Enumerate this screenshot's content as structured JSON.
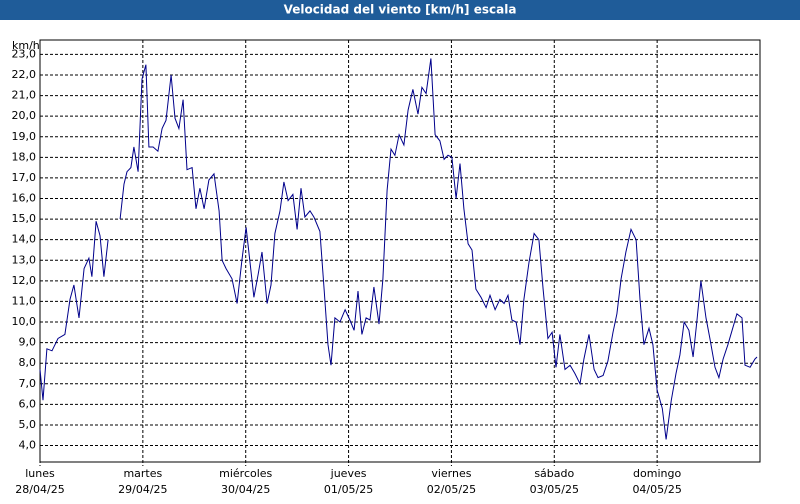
{
  "chart_data": {
    "type": "line",
    "title": "Velocidad del viento [km/h] escala",
    "y_unit": "km/h",
    "xlim": [
      0,
      168
    ],
    "xticks": [
      {
        "value": 0,
        "label": "lunes",
        "date": "28/04/25"
      },
      {
        "value": 24,
        "label": "martes",
        "date": "29/04/25"
      },
      {
        "value": 48,
        "label": "miércoles",
        "date": "30/04/25"
      },
      {
        "value": 72,
        "label": "jueves",
        "date": "01/05/25"
      },
      {
        "value": 96,
        "label": "viernes",
        "date": "02/05/25"
      },
      {
        "value": 120,
        "label": "sábado",
        "date": "03/05/25"
      },
      {
        "value": 144,
        "label": "domingo",
        "date": "04/05/25"
      }
    ],
    "ylim": [
      3.2,
      23.7
    ],
    "yticks": [
      {
        "value": 4,
        "label": "4,0"
      },
      {
        "value": 5,
        "label": "5,0"
      },
      {
        "value": 6,
        "label": "6,0"
      },
      {
        "value": 7,
        "label": "7,0"
      },
      {
        "value": 8,
        "label": "8,0"
      },
      {
        "value": 9,
        "label": "9,0"
      },
      {
        "value": 10,
        "label": "10,0"
      },
      {
        "value": 11,
        "label": "11,0"
      },
      {
        "value": 12,
        "label": "12,0"
      },
      {
        "value": 13,
        "label": "13,0"
      },
      {
        "value": 14,
        "label": "14,0"
      },
      {
        "value": 15,
        "label": "15,0"
      },
      {
        "value": 16,
        "label": "16,0"
      },
      {
        "value": 17,
        "label": "17,0"
      },
      {
        "value": 18,
        "label": "18,0"
      },
      {
        "value": 19,
        "label": "19,0"
      },
      {
        "value": 20,
        "label": "20,0"
      },
      {
        "value": 21,
        "label": "21,0"
      },
      {
        "value": 22,
        "label": "22,0"
      },
      {
        "value": 23,
        "label": "23,0"
      }
    ],
    "grid": true,
    "color": "#00008b",
    "x": [
      0,
      0.7,
      1.6,
      2.8,
      4.2,
      5.8,
      7.0,
      7.9,
      9.1,
      10.3,
      11.4,
      12.1,
      13.1,
      14.0,
      14.9,
      15.9,
      17.0,
      18.7,
      19.6,
      20.3,
      21.2,
      21.9,
      22.9,
      23.8,
      24.7,
      25.4,
      26.4,
      27.5,
      28.5,
      29.4,
      30.6,
      31.5,
      32.4,
      33.4,
      34.3,
      35.5,
      36.4,
      37.3,
      38.3,
      39.4,
      40.6,
      41.8,
      42.5,
      43.4,
      44.8,
      46.0,
      47.1,
      48.1,
      49.0,
      49.9,
      50.9,
      51.8,
      53.0,
      53.9,
      54.8,
      56.0,
      56.9,
      57.9,
      59.0,
      60.0,
      60.9,
      61.8,
      63.0,
      63.9,
      65.3,
      66.3,
      67.2,
      67.9,
      68.8,
      70.0,
      71.2,
      72.3,
      73.3,
      74.2,
      75.1,
      76.1,
      77.0,
      77.9,
      79.1,
      80.0,
      81.0,
      81.9,
      82.8,
      83.8,
      84.9,
      85.9,
      87.0,
      88.2,
      89.1,
      90.1,
      91.2,
      92.2,
      93.3,
      94.3,
      95.2,
      96.1,
      97.1,
      98.0,
      98.9,
      99.9,
      100.8,
      101.7,
      102.9,
      104.1,
      105.0,
      106.2,
      107.3,
      108.3,
      109.2,
      110.1,
      111.1,
      112.0,
      112.9,
      114.1,
      115.3,
      116.4,
      117.4,
      118.5,
      119.5,
      120.4,
      121.3,
      122.5,
      123.7,
      124.8,
      126.0,
      126.9,
      128.1,
      129.3,
      130.2,
      131.4,
      132.5,
      133.7,
      134.6,
      135.6,
      136.7,
      137.9,
      139.1,
      140.0,
      140.9,
      142.1,
      143.0,
      144.0,
      145.2,
      146.1,
      147.3,
      148.4,
      149.3,
      150.3,
      151.4,
      152.4,
      153.3,
      154.2,
      155.4,
      156.3,
      157.5,
      158.4,
      159.4,
      160.5,
      161.5,
      162.6,
      163.8,
      164.5,
      165.7,
      166.8,
      167.3
    ],
    "values": [
      7.7,
      6.2,
      8.7,
      8.6,
      9.2,
      9.4,
      11.1,
      11.8,
      10.2,
      12.6,
      13.1,
      12.2,
      14.9,
      14.2,
      12.2,
      14.0,
      null,
      15.0,
      16.7,
      17.3,
      17.5,
      18.5,
      17.3,
      21.8,
      22.5,
      18.5,
      18.5,
      18.3,
      19.4,
      19.8,
      22.0,
      19.9,
      19.4,
      20.8,
      17.4,
      17.5,
      15.5,
      16.5,
      15.5,
      16.9,
      17.2,
      15.4,
      13.0,
      12.6,
      12.1,
      10.9,
      13.0,
      14.6,
      12.9,
      11.2,
      12.3,
      13.4,
      10.9,
      11.8,
      14.3,
      15.4,
      16.8,
      15.9,
      16.2,
      14.5,
      16.5,
      15.1,
      15.4,
      15.1,
      14.4,
      11.6,
      8.9,
      7.9,
      10.2,
      10.0,
      10.6,
      10.1,
      9.6,
      11.5,
      9.4,
      10.2,
      10.1,
      11.7,
      9.9,
      12.1,
      16.4,
      18.4,
      18.1,
      19.1,
      18.6,
      20.3,
      21.3,
      20.1,
      21.4,
      21.1,
      22.8,
      19.1,
      18.8,
      17.9,
      18.1,
      18.0,
      16.0,
      17.7,
      15.5,
      13.8,
      13.5,
      11.6,
      11.2,
      10.7,
      11.3,
      10.6,
      11.1,
      10.9,
      11.3,
      10.1,
      10.0,
      8.9,
      11.1,
      12.9,
      14.3,
      14.0,
      11.6,
      9.2,
      9.5,
      7.8,
      9.4,
      7.7,
      7.9,
      7.5,
      7.0,
      8.2,
      9.4,
      7.7,
      7.3,
      7.4,
      8.1,
      9.5,
      10.4,
      12.1,
      13.4,
      14.5,
      14.0,
      11.1,
      8.9,
      9.7,
      8.9,
      6.7,
      5.8,
      4.3,
      6.2,
      7.5,
      8.4,
      10.0,
      9.6,
      8.3,
      10.1,
      12.0,
      10.2,
      9.2,
      7.8,
      7.3,
      8.2,
      8.9,
      9.6,
      10.4,
      10.2,
      7.9,
      7.8,
      8.2,
      8.3
    ]
  }
}
